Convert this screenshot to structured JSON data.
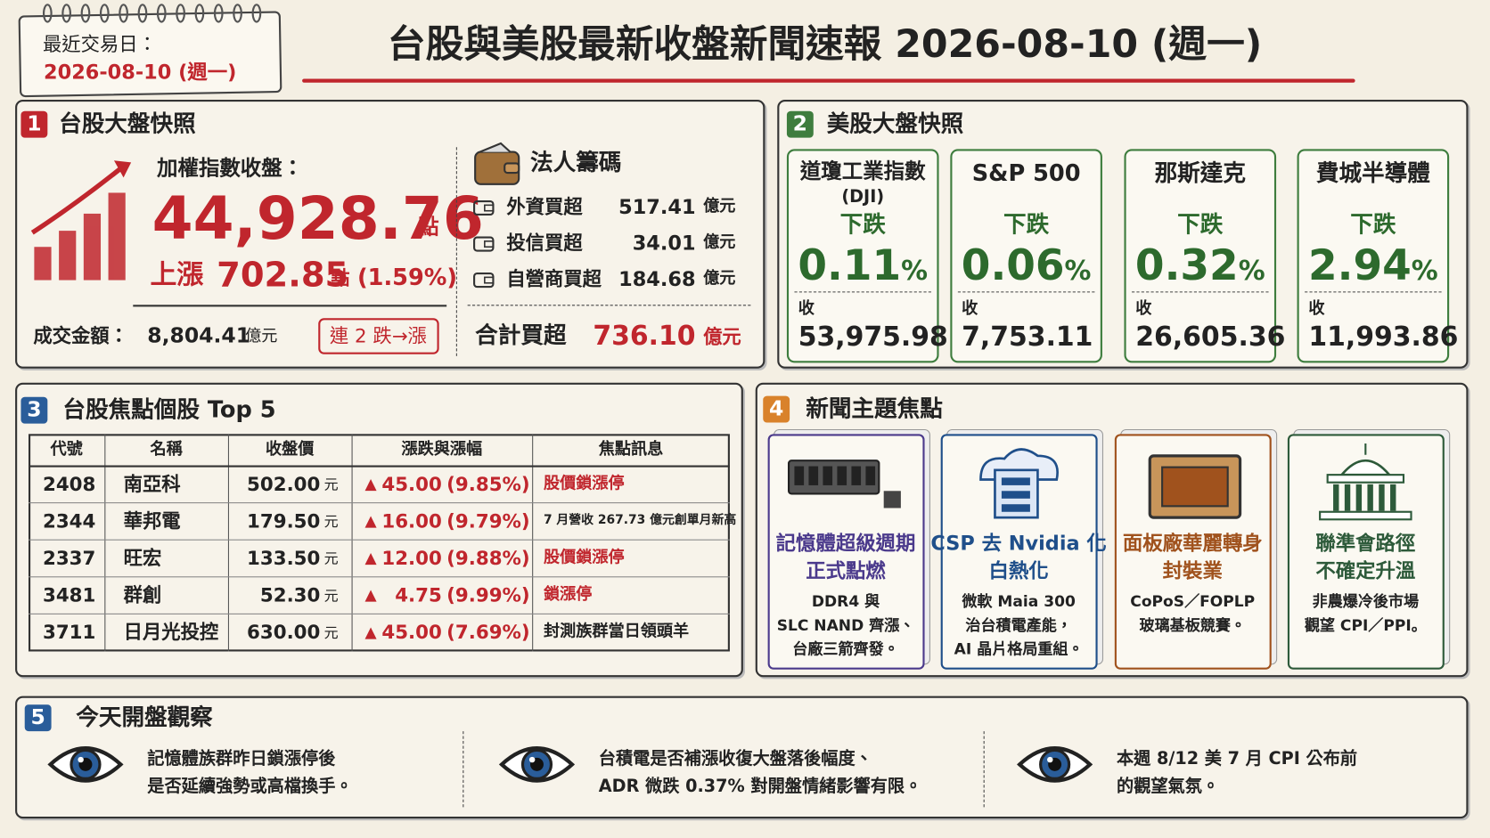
{
  "badge": {
    "label": "最近交易日：",
    "date": "2026-08-10 (週一)"
  },
  "title": "台股與美股最新收盤新聞速報 2026-08-10 (週一)",
  "tw_market": {
    "number": "1",
    "heading": "台股大盤快照",
    "index_label": "加權指數收盤：",
    "index_value": "44,928.76",
    "index_unit": "點",
    "change_label": "上漲",
    "change_value": "702.85",
    "change_unit": "點",
    "change_pct": "(1.59%)",
    "turnover_label": "成交金額：",
    "turnover_value": "8,804.41",
    "turnover_unit": "億元",
    "streak": "連 2 跌→漲",
    "institutional": {
      "heading": "法人籌碼",
      "rows": [
        {
          "name": "外資買超",
          "value": "517.41",
          "unit": "億元"
        },
        {
          "name": "投信買超",
          "value": "34.01",
          "unit": "億元"
        },
        {
          "name": "自營商買超",
          "value": "184.68",
          "unit": "億元"
        }
      ],
      "total": {
        "name": "合計買超",
        "value": "736.10",
        "unit": "億元"
      }
    }
  },
  "us_market": {
    "number": "2",
    "heading": "美股大盤快照",
    "cards": [
      {
        "name": "道瓊工業指數",
        "sub": "(DJI)",
        "direction": "下跌",
        "pct": "0.11",
        "pct_unit": "%",
        "close_label": "收",
        "close": "53,975.98"
      },
      {
        "name": "S&P 500",
        "direction": "下跌",
        "pct": "0.06",
        "pct_unit": "%",
        "close_label": "收",
        "close": "7,753.11"
      },
      {
        "name": "那斯達克",
        "direction": "下跌",
        "pct": "0.32",
        "pct_unit": "%",
        "close_label": "收",
        "close": "26,605.36"
      },
      {
        "name": "費城半導體",
        "direction": "下跌",
        "pct": "2.94",
        "pct_unit": "%",
        "close_label": "收",
        "close": "11,993.86"
      }
    ]
  },
  "top_stocks": {
    "number": "3",
    "heading": "台股焦點個股 Top 5",
    "columns": [
      "代號",
      "名稱",
      "收盤價",
      "漲跌與漲幅",
      "焦點訊息"
    ],
    "rows": [
      {
        "code": "2408",
        "name": "南亞科",
        "price": "502.00",
        "price_unit": "元",
        "arrow": "▲",
        "change": "45.00",
        "pct": "(9.85%)",
        "note": "股價鎖漲停",
        "note_color": "#c0262d"
      },
      {
        "code": "2344",
        "name": "華邦電",
        "price": "179.50",
        "price_unit": "元",
        "arrow": "▲",
        "change": "16.00",
        "pct": "(9.79%)",
        "note": "7 月營收 267.73 億元創單月新高",
        "note_color": "#222"
      },
      {
        "code": "2337",
        "name": "旺宏",
        "price": "133.50",
        "price_unit": "元",
        "arrow": "▲",
        "change": "12.00",
        "pct": "(9.88%)",
        "note": "股價鎖漲停",
        "note_color": "#c0262d"
      },
      {
        "code": "3481",
        "name": "群創",
        "price": "52.30",
        "price_unit": "元",
        "arrow": "▲",
        "change": "4.75",
        "pct": "(9.99%)",
        "note": "鎖漲停",
        "note_color": "#c0262d"
      },
      {
        "code": "3711",
        "name": "日月光投控",
        "price": "630.00",
        "price_unit": "元",
        "arrow": "▲",
        "change": "45.00",
        "pct": "(7.69%)",
        "note": "封測族群當日領頭羊",
        "note_color": "#222"
      }
    ]
  },
  "news": {
    "number": "4",
    "heading": "新聞主題焦點",
    "cards": [
      {
        "title": [
          "記憶體超級週期",
          "正式點燃"
        ],
        "body": [
          "DDR4 與",
          "SLC NAND 齊漲、",
          "台廠三箭齊發。"
        ],
        "color": "#4b3a8c"
      },
      {
        "title": [
          "CSP 去 Nvidia 化",
          "白熱化"
        ],
        "body": [
          "微軟 Maia 300",
          "治台積電產能，",
          "AI 晶片格局重組。"
        ],
        "color": "#1f4f8a"
      },
      {
        "title": [
          "面板廠華麗轉身",
          "封裝業"
        ],
        "body": [
          "CoPoS／FOPLP",
          "玻璃基板競賽。"
        ],
        "color": "#a0521d"
      },
      {
        "title": [
          "聯準會路徑",
          "不確定升溫"
        ],
        "body": [
          "非農爆冷後市場",
          "觀望 CPI／PPI。"
        ],
        "color": "#2d5a3a"
      }
    ]
  },
  "watch": {
    "number": "5",
    "heading": "今天開盤觀察",
    "items": [
      {
        "lines": [
          "記憶體族群昨日鎖漲停後",
          "是否延續強勢或高檔換手。"
        ]
      },
      {
        "lines": [
          "台積電是否補漲收復大盤落後幅度、",
          "ADR 微跌 0.37% 對開盤情緒影響有限。"
        ]
      },
      {
        "lines": [
          "本週 8/12 美 7 月 CPI 公布前",
          "的觀望氣氛。"
        ]
      }
    ]
  }
}
